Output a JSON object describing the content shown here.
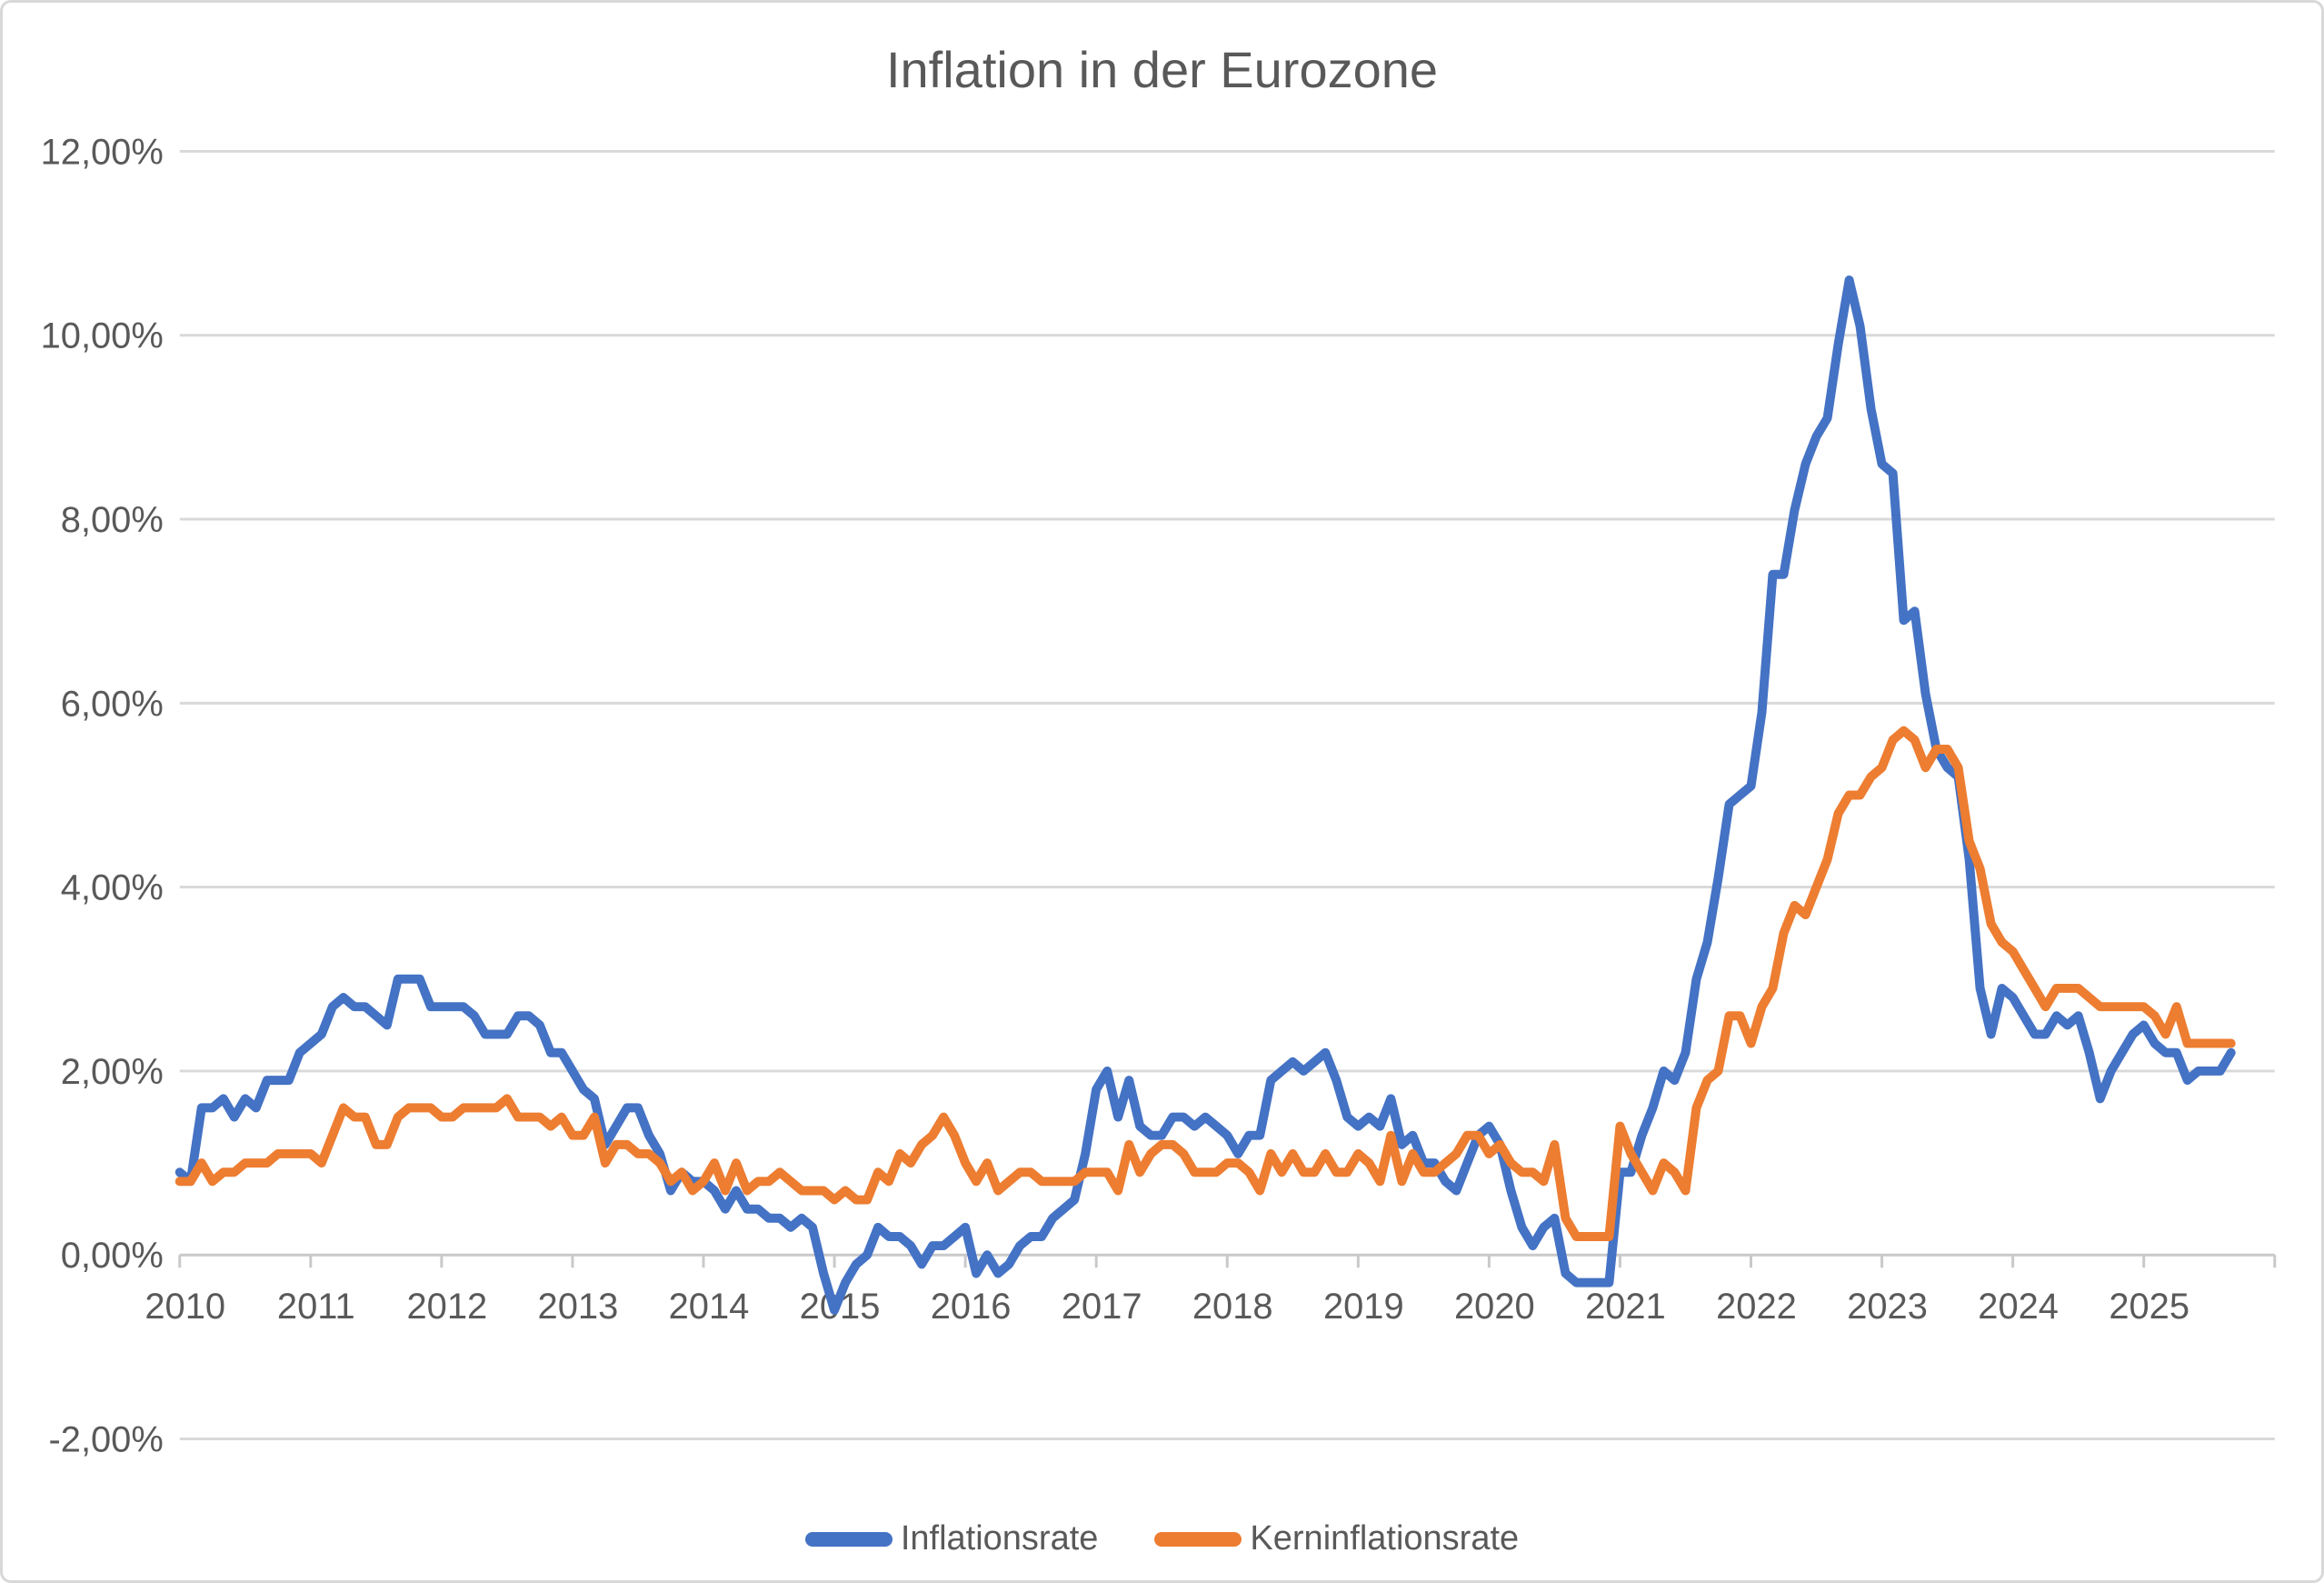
{
  "chart_data": {
    "type": "line",
    "title": "Inflation in der Eurozone",
    "xlabel": "",
    "ylabel": "",
    "frequency": "monthly",
    "x_start": "2010-01",
    "x_end": "2025-09",
    "x_axis_span_end": "2026-01",
    "x_tick_labels": [
      "2010",
      "2011",
      "2012",
      "2013",
      "2014",
      "2015",
      "2016",
      "2017",
      "2018",
      "2019",
      "2020",
      "2021",
      "2022",
      "2023",
      "2024",
      "2025"
    ],
    "y_ticks": [
      12,
      10,
      8,
      6,
      4,
      2,
      0,
      -2
    ],
    "y_tick_labels": [
      "12,00%",
      "10,00%",
      "8,00%",
      "6,00%",
      "4,00%",
      "2,00%",
      "0,00%",
      "-2,00%"
    ],
    "ylim": [
      -2,
      12
    ],
    "grid": true,
    "legend_position": "bottom",
    "colors": {
      "grid": "#D9D9D9",
      "axis": "#C9C9C9",
      "text": "#595959"
    },
    "series": [
      {
        "name": "Inflationsrate",
        "color": "#4472C4",
        "unit": "percent",
        "values": [
          0.9,
          0.8,
          1.6,
          1.6,
          1.7,
          1.5,
          1.7,
          1.6,
          1.9,
          1.9,
          1.9,
          2.2,
          2.3,
          2.4,
          2.7,
          2.8,
          2.7,
          2.7,
          2.6,
          2.5,
          3.0,
          3.0,
          3.0,
          2.7,
          2.7,
          2.7,
          2.7,
          2.6,
          2.4,
          2.4,
          2.4,
          2.6,
          2.6,
          2.5,
          2.2,
          2.2,
          2.0,
          1.8,
          1.7,
          1.2,
          1.4,
          1.6,
          1.6,
          1.3,
          1.1,
          0.7,
          0.9,
          0.8,
          0.8,
          0.7,
          0.5,
          0.7,
          0.5,
          0.5,
          0.4,
          0.4,
          0.3,
          0.4,
          0.3,
          -0.2,
          -0.6,
          -0.3,
          -0.1,
          0.0,
          0.3,
          0.2,
          0.2,
          0.1,
          -0.1,
          0.1,
          0.1,
          0.2,
          0.3,
          -0.2,
          0.0,
          -0.2,
          -0.1,
          0.1,
          0.2,
          0.2,
          0.4,
          0.5,
          0.6,
          1.1,
          1.8,
          2.0,
          1.5,
          1.9,
          1.4,
          1.3,
          1.3,
          1.5,
          1.5,
          1.4,
          1.5,
          1.4,
          1.3,
          1.1,
          1.3,
          1.3,
          1.9,
          2.0,
          2.1,
          2.0,
          2.1,
          2.2,
          1.9,
          1.5,
          1.4,
          1.5,
          1.4,
          1.7,
          1.2,
          1.3,
          1.0,
          1.0,
          0.8,
          0.7,
          1.0,
          1.3,
          1.4,
          1.2,
          0.7,
          0.3,
          0.1,
          0.3,
          0.4,
          -0.2,
          -0.3,
          -0.3,
          -0.3,
          -0.3,
          0.9,
          0.9,
          1.3,
          1.6,
          2.0,
          1.9,
          2.2,
          3.0,
          3.4,
          4.1,
          4.9,
          5.0,
          5.1,
          5.9,
          7.4,
          7.4,
          8.1,
          8.6,
          8.9,
          9.1,
          9.9,
          10.6,
          10.1,
          9.2,
          8.6,
          8.5,
          6.9,
          7.0,
          6.1,
          5.5,
          5.3,
          5.2,
          4.3,
          2.9,
          2.4,
          2.9,
          2.8,
          2.6,
          2.4,
          2.4,
          2.6,
          2.5,
          2.6,
          2.2,
          1.7,
          2.0,
          2.2,
          2.4,
          2.5,
          2.3,
          2.2,
          2.2,
          1.9,
          2.0,
          2.0,
          2.0,
          2.2
        ]
      },
      {
        "name": "Kerninflationsrate",
        "color": "#ED7D31",
        "unit": "percent",
        "values": [
          0.8,
          0.8,
          1.0,
          0.8,
          0.9,
          0.9,
          1.0,
          1.0,
          1.0,
          1.1,
          1.1,
          1.1,
          1.1,
          1.0,
          1.3,
          1.6,
          1.5,
          1.5,
          1.2,
          1.2,
          1.5,
          1.6,
          1.6,
          1.6,
          1.5,
          1.5,
          1.6,
          1.6,
          1.6,
          1.6,
          1.7,
          1.5,
          1.5,
          1.5,
          1.4,
          1.5,
          1.3,
          1.3,
          1.5,
          1.0,
          1.2,
          1.2,
          1.1,
          1.1,
          1.0,
          0.8,
          0.9,
          0.7,
          0.8,
          1.0,
          0.7,
          1.0,
          0.7,
          0.8,
          0.8,
          0.9,
          0.8,
          0.7,
          0.7,
          0.7,
          0.6,
          0.7,
          0.6,
          0.6,
          0.9,
          0.8,
          1.1,
          1.0,
          1.2,
          1.3,
          1.5,
          1.3,
          1.0,
          0.8,
          1.0,
          0.7,
          0.8,
          0.9,
          0.9,
          0.8,
          0.8,
          0.8,
          0.8,
          0.9,
          0.9,
          0.9,
          0.7,
          1.2,
          0.9,
          1.1,
          1.2,
          1.2,
          1.1,
          0.9,
          0.9,
          0.9,
          1.0,
          1.0,
          0.9,
          0.7,
          1.1,
          0.9,
          1.1,
          0.9,
          0.9,
          1.1,
          0.9,
          0.9,
          1.1,
          1.0,
          0.8,
          1.3,
          0.8,
          1.1,
          0.9,
          0.9,
          1.0,
          1.1,
          1.3,
          1.3,
          1.1,
          1.2,
          1.0,
          0.9,
          0.9,
          0.8,
          1.2,
          0.4,
          0.2,
          0.2,
          0.2,
          0.2,
          1.4,
          1.1,
          0.9,
          0.7,
          1.0,
          0.9,
          0.7,
          1.6,
          1.9,
          2.0,
          2.6,
          2.6,
          2.3,
          2.7,
          2.9,
          3.5,
          3.8,
          3.7,
          4.0,
          4.3,
          4.8,
          5.0,
          5.0,
          5.2,
          5.3,
          5.6,
          5.7,
          5.6,
          5.3,
          5.5,
          5.5,
          5.3,
          4.5,
          4.2,
          3.6,
          3.4,
          3.3,
          3.1,
          2.9,
          2.7,
          2.9,
          2.9,
          2.9,
          2.8,
          2.7,
          2.7,
          2.7,
          2.7,
          2.7,
          2.6,
          2.4,
          2.7,
          2.3,
          2.3,
          2.3,
          2.3,
          2.3
        ]
      }
    ]
  }
}
